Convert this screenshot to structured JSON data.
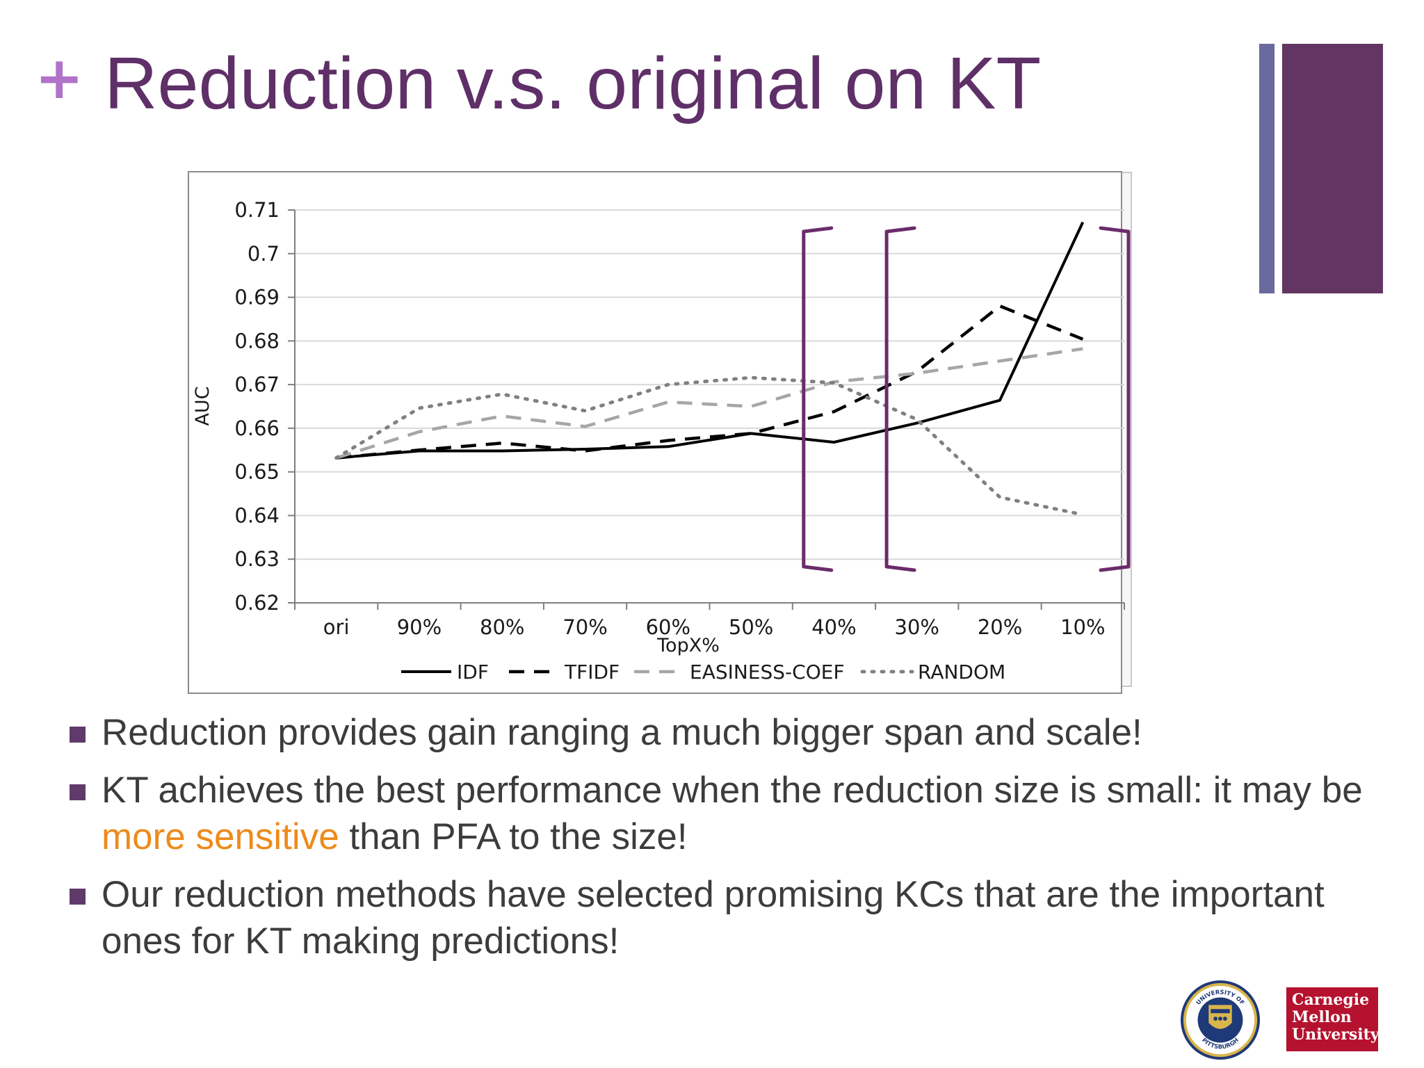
{
  "slide": {
    "plus": "+",
    "title": "Reduction v.s. original on KT"
  },
  "chart_data": {
    "type": "line",
    "xlabel": "TopX%",
    "ylabel": "AUC",
    "categories": [
      "ori",
      "90%",
      "80%",
      "70%",
      "60%",
      "50%",
      "40%",
      "30%",
      "20%",
      "10%"
    ],
    "ylim": [
      0.62,
      0.71
    ],
    "yticks": [
      "0.71",
      "0.7",
      "0.69",
      "0.68",
      "0.67",
      "0.66",
      "0.65",
      "0.64",
      "0.63",
      "0.62"
    ],
    "grid": true,
    "legend_position": "bottom",
    "series": [
      {
        "name": "IDF",
        "style": "solid",
        "color": "#000000",
        "values": [
          0.6532,
          0.6548,
          0.6548,
          0.6552,
          0.6558,
          0.6588,
          0.6568,
          0.6612,
          0.6664,
          0.7072
        ]
      },
      {
        "name": "TFIDF",
        "style": "dashed",
        "color": "#000000",
        "values": [
          0.6532,
          0.655,
          0.6566,
          0.6548,
          0.6572,
          0.6588,
          0.6638,
          0.673,
          0.688,
          0.6804
        ]
      },
      {
        "name": "EASINESS-COEF",
        "style": "dashed",
        "color": "#a6a6a6",
        "values": [
          0.6532,
          0.6592,
          0.6628,
          0.6604,
          0.666,
          0.665,
          0.6706,
          0.6726,
          0.6754,
          0.6782
        ]
      },
      {
        "name": "RANDOM",
        "style": "dotted",
        "color": "#808080",
        "values": [
          0.6532,
          0.6646,
          0.6678,
          0.664,
          0.67,
          0.6716,
          0.6704,
          0.662,
          0.6442,
          0.6402
        ]
      }
    ],
    "annotations": [
      {
        "type": "bracket",
        "shape": "left",
        "color": "#6b2c6b",
        "category": "40%"
      },
      {
        "type": "bracket",
        "shape": "left",
        "color": "#6b2c6b",
        "category": "30%"
      },
      {
        "type": "bracket",
        "shape": "right",
        "color": "#6b2c6b",
        "category": "10%"
      }
    ]
  },
  "bullets": [
    {
      "parts": [
        {
          "text": "Reduction provides gain ranging a much bigger span and scale!",
          "highlight": false
        }
      ]
    },
    {
      "parts": [
        {
          "text": "KT achieves the best performance when the reduction size is small: it may be ",
          "highlight": false
        },
        {
          "text": "more sensitive",
          "highlight": true
        },
        {
          "text": " than PFA to the size!",
          "highlight": false
        }
      ]
    },
    {
      "parts": [
        {
          "text": "Our reduction methods have selected promising KCs that are the important ones for KT making predictions!",
          "highlight": false
        }
      ]
    }
  ],
  "logos": {
    "pitt": {
      "ring_top": "UNIVERSITY OF",
      "ring_bottom": "PITTSBURGH"
    },
    "cmu": {
      "lines": [
        "Carnegie",
        "Mellon",
        "University"
      ]
    }
  },
  "colors": {
    "title": "#5f2f68",
    "plus": "#b073c9",
    "accent_bar_thin": "#6a6a9c",
    "accent_bar_wide": "#633563",
    "bracket": "#6b2c6b",
    "highlight": "#ee8a1a",
    "bullet_marker": "#5f3a6a",
    "cmu_red": "#b4122e"
  }
}
